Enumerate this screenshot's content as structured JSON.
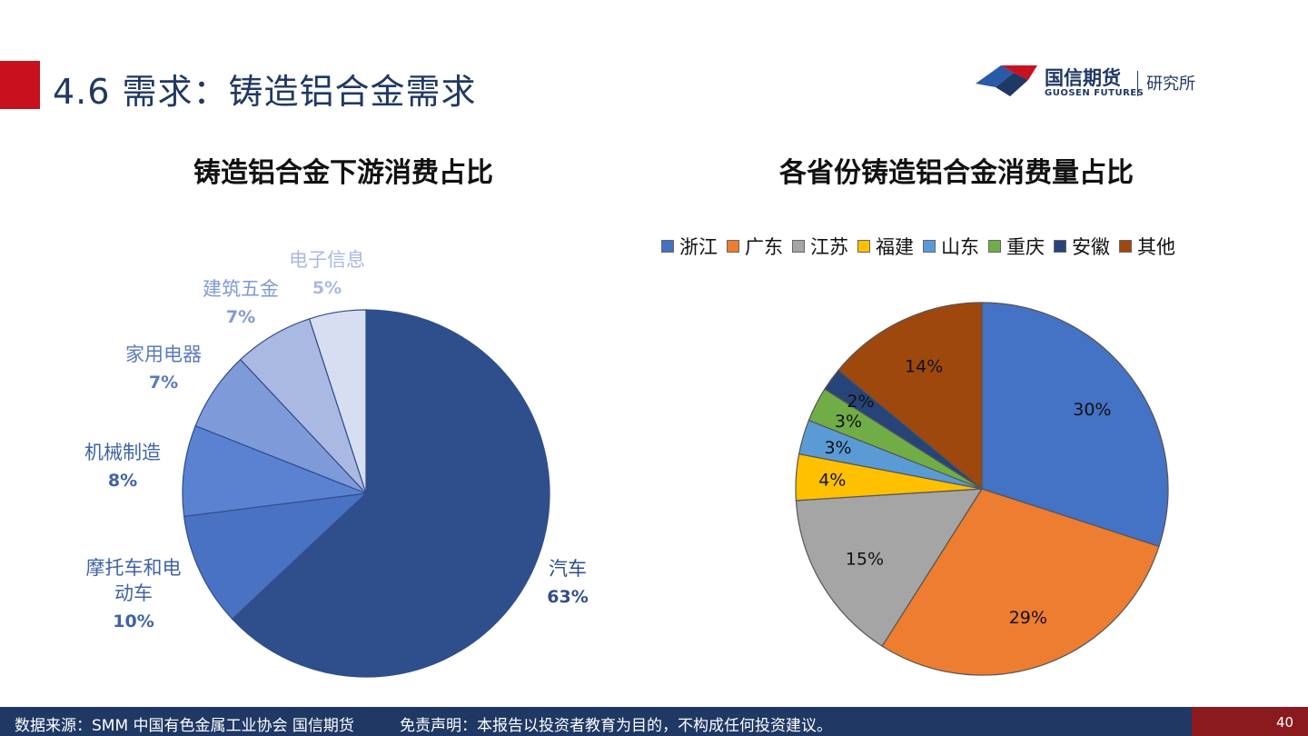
{
  "header": {
    "title": "4.6 需求：铸造铝合金需求",
    "logo_cn": "国信期货",
    "logo_en": "GUOSEN FUTURES",
    "logo_sub": "研究所"
  },
  "footer": {
    "source": "数据来源：SMM 中国有色金属工业协会 国信期货",
    "disclaimer": "免责声明：本报告以投资者教育为目的，不构成任何投资建议。",
    "page_number": "40"
  },
  "chart_data": [
    {
      "type": "pie",
      "title": "铸造铝合金下游消费占比",
      "slices": [
        {
          "name": "汽车",
          "value": 63,
          "label": "63%",
          "color": "#2f4e8c"
        },
        {
          "name": "摩托车和电动车",
          "value": 10,
          "label": "10%",
          "color": "#4a72c2"
        },
        {
          "name": "机械制造",
          "value": 8,
          "label": "8%",
          "color": "#5b82d0"
        },
        {
          "name": "家用电器",
          "value": 7,
          "label": "7%",
          "color": "#7f9ad8"
        },
        {
          "name": "建筑五金",
          "value": 7,
          "label": "7%",
          "color": "#aab9e2"
        },
        {
          "name": "电子信息",
          "value": 5,
          "label": "5%",
          "color": "#d7def1"
        }
      ]
    },
    {
      "type": "pie",
      "title": "各省份铸造铝合金消费量占比",
      "legend": "top",
      "slices": [
        {
          "name": "浙江",
          "value": 30,
          "label": "30%",
          "color": "#4472c4"
        },
        {
          "name": "广东",
          "value": 29,
          "label": "29%",
          "color": "#ed7d31"
        },
        {
          "name": "江苏",
          "value": 15,
          "label": "15%",
          "color": "#a5a5a5"
        },
        {
          "name": "福建",
          "value": 4,
          "label": "4%",
          "color": "#ffc000"
        },
        {
          "name": "山东",
          "value": 3,
          "label": "3%",
          "color": "#5b9bd5"
        },
        {
          "name": "重庆",
          "value": 3,
          "label": "3%",
          "color": "#70ad47"
        },
        {
          "name": "安徽",
          "value": 2,
          "label": "2%",
          "color": "#264478"
        },
        {
          "name": "其他",
          "value": 14,
          "label": "14%",
          "color": "#9e480e"
        }
      ]
    }
  ]
}
